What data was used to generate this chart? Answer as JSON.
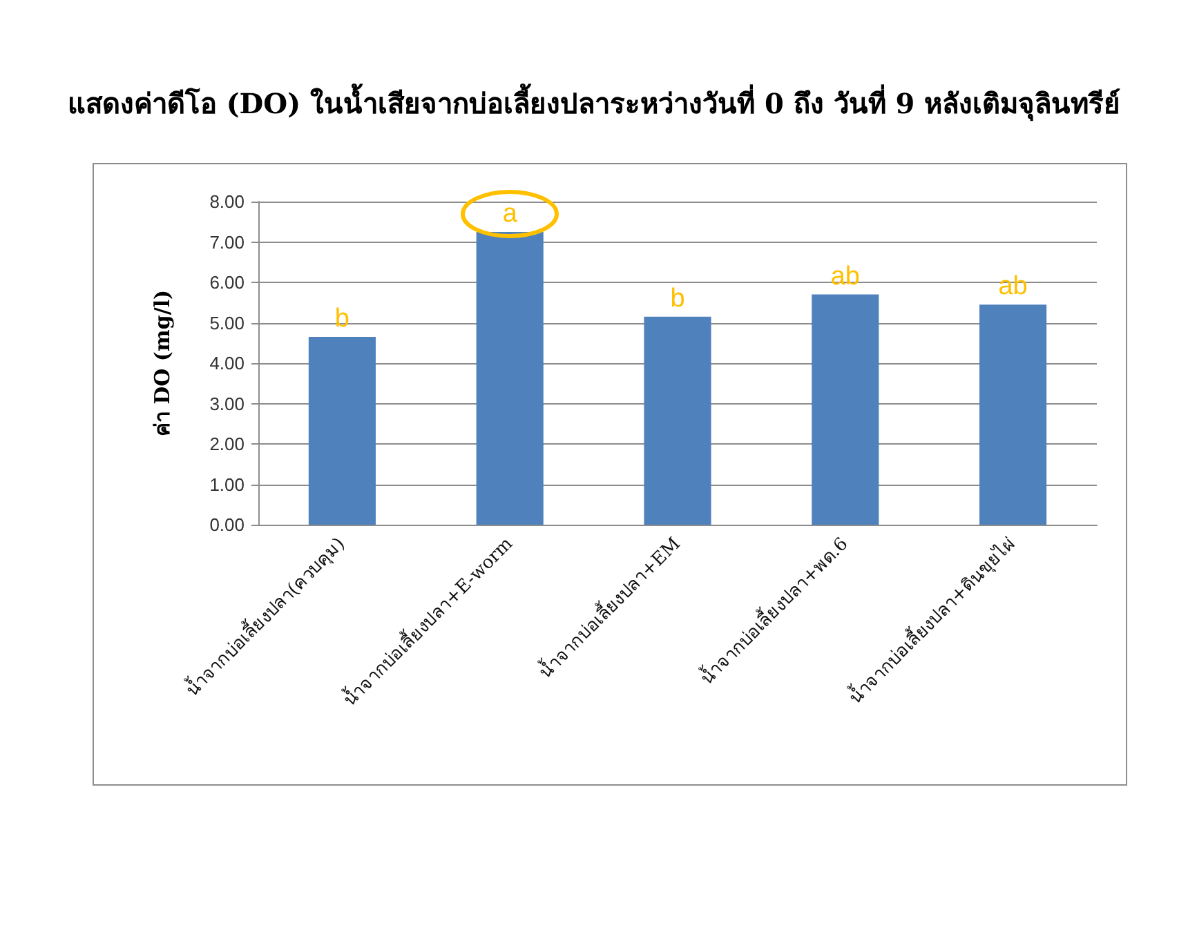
{
  "chart_data": {
    "type": "bar",
    "title": "แสดงค่าดีโอ (DO) ในน้ำเสียจากบ่อเลี้ยงปลาระหว่างวันที่ 0 ถึง วันที่ 9 หลังเติมจุลินทรีย์",
    "ylabel": "ค่า DO (mg/l)",
    "categories": [
      "น้ำจากบ่อเลี้ยงปลา(ควบคุม)",
      "น้ำจากบ่อเลี้ยงปลา+E-worm",
      "น้ำจากบ่อเลี้ยงปลา+EM",
      "น้ำจากบ่อเลี้ยงปลา+พด.6",
      "น้ำจากบ่อเลี้ยงปลา+ดินขุยไผ่"
    ],
    "values": [
      4.65,
      7.25,
      5.15,
      5.7,
      5.45
    ],
    "color": "#4f81bd",
    "ylim": [
      0,
      8
    ],
    "yticks": [
      {
        "value": 0,
        "label": "0.00"
      },
      {
        "value": 1,
        "label": "1.00"
      },
      {
        "value": 2,
        "label": "2.00"
      },
      {
        "value": 3,
        "label": "3.00"
      },
      {
        "value": 4,
        "label": "4.00"
      },
      {
        "value": 5,
        "label": "5.00"
      },
      {
        "value": 6,
        "label": "6.00"
      },
      {
        "value": 7,
        "label": "7.00"
      },
      {
        "value": 8,
        "label": "8.00"
      }
    ],
    "grid": "y",
    "annotations": [
      {
        "text": "b",
        "x": "น้ำจากบ่อเลี้ยงปลา(ควบคุม)",
        "y": 4.65
      },
      {
        "text": "a",
        "x": "น้ำจากบ่อเลี้ยงปลา+E-worm",
        "y": 7.25
      },
      {
        "text": "b",
        "x": "น้ำจากบ่อเลี้ยงปลา+EM",
        "y": 5.15
      },
      {
        "text": "ab",
        "x": "น้ำจากบ่อเลี้ยงปลา+พด.6",
        "y": 5.7
      },
      {
        "text": "ab",
        "x": "น้ำจากบ่อเลี้ยงปลา+ดินขุยไผ่",
        "y": 5.45
      }
    ]
  }
}
